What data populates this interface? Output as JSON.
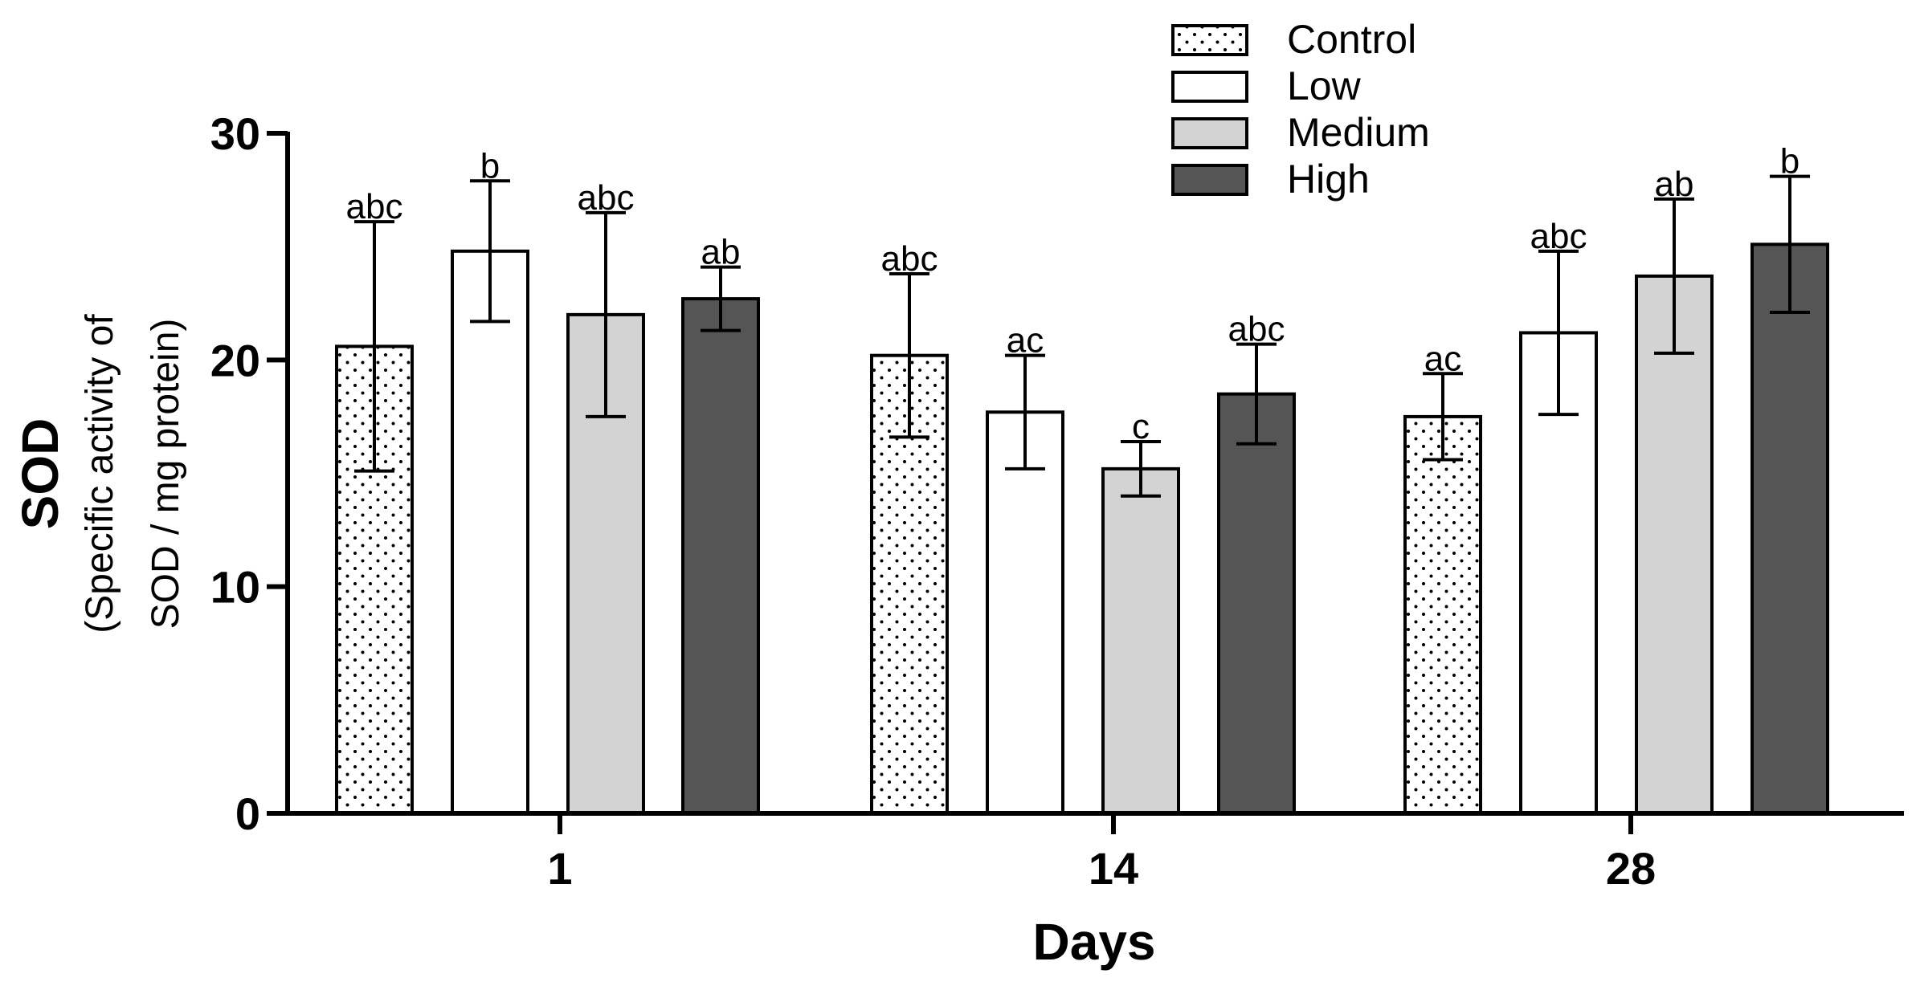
{
  "chart_data": {
    "type": "bar",
    "title": "",
    "xlabel": "Days",
    "ylabel": "SOD",
    "ylabel_sub": [
      "(Specific activity of",
      "SOD / mg protein)"
    ],
    "ylim": [
      0,
      30
    ],
    "yticks": [
      0,
      10,
      20,
      30
    ],
    "categories": [
      "1",
      "14",
      "28"
    ],
    "legend_position": "top-right",
    "series": [
      {
        "name": "Control",
        "pattern": "dots",
        "fill": "#ffffff",
        "values": [
          20.6,
          20.2,
          17.5
        ],
        "errors": [
          5.5,
          3.6,
          1.9
        ],
        "labels": [
          "abc",
          "abc",
          "ac"
        ]
      },
      {
        "name": "Low",
        "pattern": "solid",
        "fill": "#ffffff",
        "values": [
          24.8,
          17.7,
          21.2
        ],
        "errors": [
          3.1,
          2.5,
          3.6
        ],
        "labels": [
          "b",
          "ac",
          "abc"
        ]
      },
      {
        "name": "Medium",
        "pattern": "solid",
        "fill": "#d3d3d3",
        "values": [
          22.0,
          15.2,
          23.7
        ],
        "errors": [
          4.5,
          1.2,
          3.4
        ],
        "labels": [
          "abc",
          "c",
          "ab"
        ]
      },
      {
        "name": "High",
        "pattern": "solid",
        "fill": "#555555",
        "values": [
          22.7,
          18.5,
          25.1
        ],
        "errors": [
          1.4,
          2.2,
          3.0
        ],
        "labels": [
          "ab",
          "abc",
          "b"
        ]
      }
    ]
  }
}
